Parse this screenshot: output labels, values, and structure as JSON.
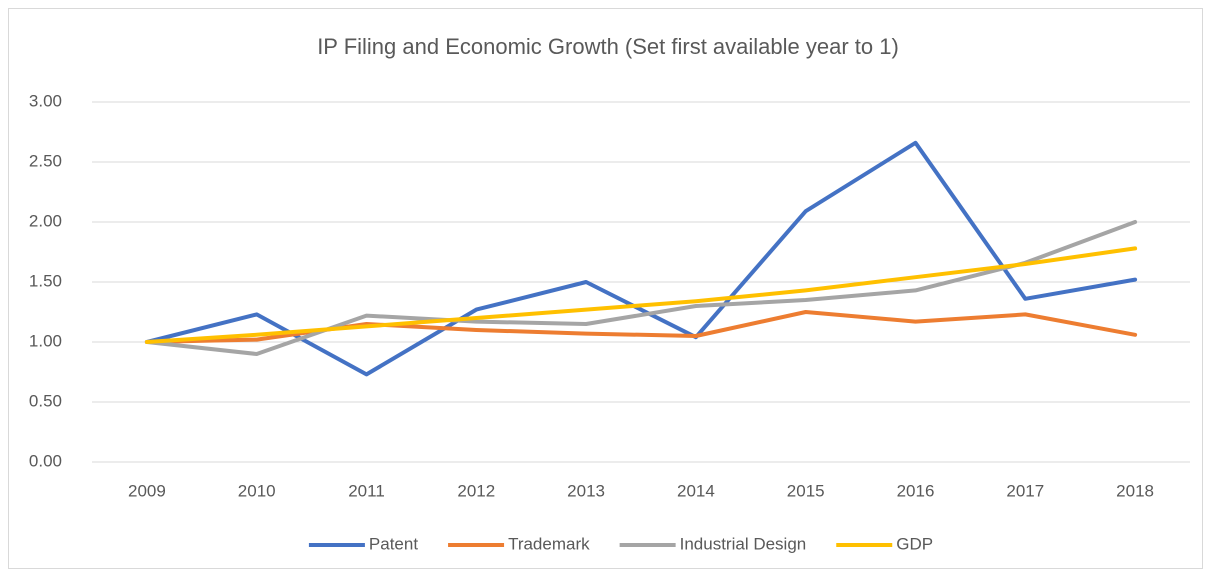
{
  "chart_data": {
    "type": "line",
    "title": "IP Filing and Economic Growth (Set first available year to 1)",
    "categories": [
      "2009",
      "2010",
      "2011",
      "2012",
      "2013",
      "2014",
      "2015",
      "2016",
      "2017",
      "2018"
    ],
    "series": [
      {
        "name": "Patent",
        "color": "#4472c4",
        "values": [
          1.0,
          1.23,
          0.73,
          1.27,
          1.5,
          1.04,
          2.09,
          2.66,
          1.36,
          1.52
        ]
      },
      {
        "name": "Trademark",
        "color": "#ed7d31",
        "values": [
          1.0,
          1.02,
          1.15,
          1.1,
          1.07,
          1.05,
          1.25,
          1.17,
          1.23,
          1.06
        ]
      },
      {
        "name": "Industrial Design",
        "color": "#a5a5a5",
        "values": [
          1.0,
          0.9,
          1.22,
          1.17,
          1.15,
          1.3,
          1.35,
          1.43,
          1.66,
          2.0
        ]
      },
      {
        "name": "GDP",
        "color": "#ffc000",
        "values": [
          1.0,
          1.06,
          1.13,
          1.2,
          1.27,
          1.34,
          1.43,
          1.54,
          1.65,
          1.78
        ]
      }
    ],
    "ylim": [
      0,
      3
    ],
    "yticks": [
      {
        "value": 0,
        "label": "0.00"
      },
      {
        "value": 0.5,
        "label": "0.50"
      },
      {
        "value": 1,
        "label": "1.00"
      },
      {
        "value": 1.5,
        "label": "1.50"
      },
      {
        "value": 2,
        "label": "2.00"
      },
      {
        "value": 2.5,
        "label": "2.50"
      },
      {
        "value": 3,
        "label": "3.00"
      }
    ],
    "grid": true,
    "legend": "bottom"
  }
}
